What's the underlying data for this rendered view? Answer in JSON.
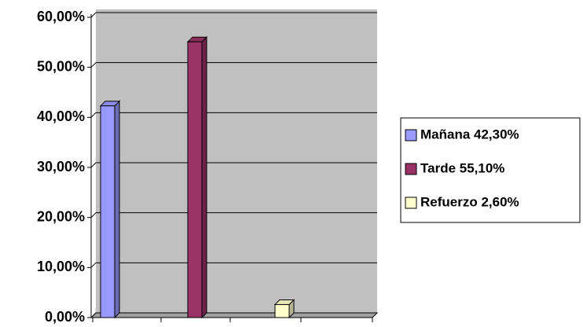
{
  "chart_data": {
    "type": "bar3d",
    "categories": [
      null
    ],
    "series": [
      {
        "name": "Mañana 42,30%",
        "color": "#9999ff",
        "values": [
          42.3
        ]
      },
      {
        "name": "Tarde 55,10%",
        "color": "#993366",
        "values": [
          55.1
        ]
      },
      {
        "name": "Refuerzo 2,60%",
        "color": "#ffffcc",
        "values": [
          2.6
        ]
      }
    ],
    "ylim": [
      0,
      60
    ],
    "yticks": [
      {
        "value": 0,
        "label": "0,00%"
      },
      {
        "value": 10,
        "label": "10,00%"
      },
      {
        "value": 20,
        "label": "20,00%"
      },
      {
        "value": 30,
        "label": "30,00%"
      },
      {
        "value": 40,
        "label": "40,00%"
      },
      {
        "value": 50,
        "label": "50,00%"
      },
      {
        "value": 60,
        "label": "60,00%"
      }
    ],
    "grid": true,
    "legend": "right"
  }
}
